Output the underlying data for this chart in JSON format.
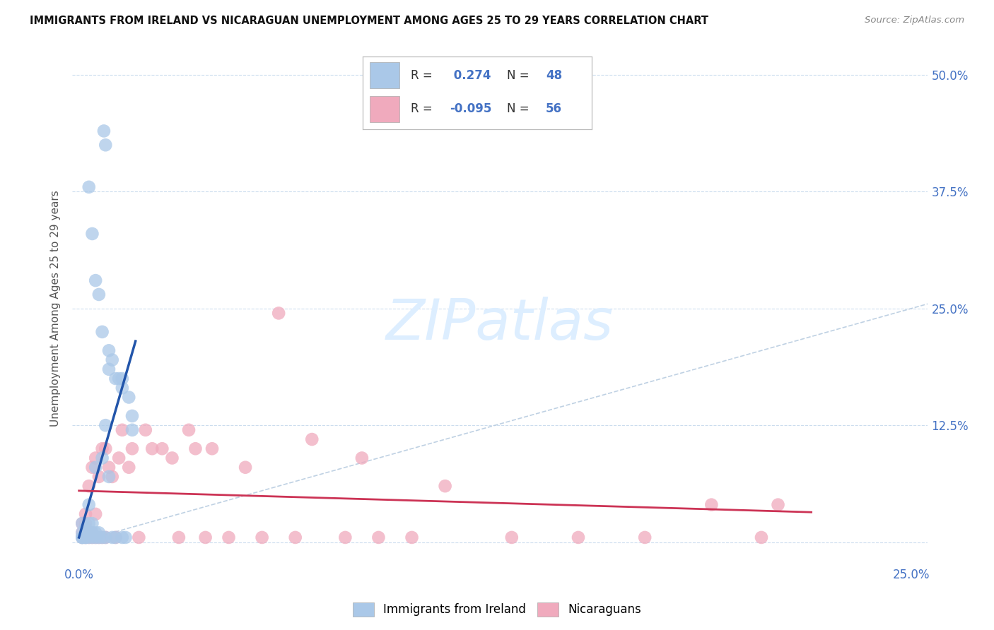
{
  "title": "IMMIGRANTS FROM IRELAND VS NICARAGUAN UNEMPLOYMENT AMONG AGES 25 TO 29 YEARS CORRELATION CHART",
  "source": "Source: ZipAtlas.com",
  "ylabel": "Unemployment Among Ages 25 to 29 years",
  "xlim": [
    -0.002,
    0.255
  ],
  "ylim": [
    -0.025,
    0.525
  ],
  "x_tick_pos": [
    0.0,
    0.05,
    0.1,
    0.15,
    0.2,
    0.25
  ],
  "x_tick_labels": [
    "0.0%",
    "",
    "",
    "",
    "",
    "25.0%"
  ],
  "y_tick_pos": [
    0.0,
    0.125,
    0.25,
    0.375,
    0.5
  ],
  "y_tick_labels_right": [
    "",
    "12.5%",
    "25.0%",
    "37.5%",
    "50.0%"
  ],
  "ireland_R": 0.274,
  "ireland_N": 48,
  "nicaragua_R": -0.095,
  "nicaragua_N": 56,
  "ireland_color": "#aac8e8",
  "ireland_line_color": "#2255aa",
  "nicaragua_color": "#f0aabd",
  "nicaragua_line_color": "#cc3355",
  "diagonal_color": "#b8cce0",
  "watermark_color": "#ddeeff",
  "grid_color": "#ccddee",
  "background_color": "#ffffff",
  "ireland_x": [
    0.001,
    0.001,
    0.001,
    0.001,
    0.001,
    0.002,
    0.002,
    0.002,
    0.002,
    0.002,
    0.003,
    0.003,
    0.003,
    0.003,
    0.004,
    0.004,
    0.004,
    0.005,
    0.005,
    0.005,
    0.006,
    0.006,
    0.007,
    0.007,
    0.008,
    0.008,
    0.009,
    0.01,
    0.011,
    0.013,
    0.014,
    0.016,
    0.003,
    0.004,
    0.005,
    0.006,
    0.007,
    0.008,
    0.009,
    0.01,
    0.011,
    0.012,
    0.013,
    0.015,
    0.016,
    0.0075,
    0.009,
    0.013
  ],
  "ireland_y": [
    0.005,
    0.005,
    0.005,
    0.01,
    0.02,
    0.005,
    0.005,
    0.01,
    0.01,
    0.015,
    0.005,
    0.01,
    0.02,
    0.04,
    0.005,
    0.01,
    0.02,
    0.005,
    0.01,
    0.08,
    0.005,
    0.01,
    0.005,
    0.09,
    0.005,
    0.125,
    0.07,
    0.005,
    0.005,
    0.005,
    0.005,
    0.12,
    0.38,
    0.33,
    0.28,
    0.265,
    0.225,
    0.425,
    0.205,
    0.195,
    0.175,
    0.175,
    0.175,
    0.155,
    0.135,
    0.44,
    0.185,
    0.165
  ],
  "nicaragua_x": [
    0.001,
    0.001,
    0.001,
    0.002,
    0.002,
    0.002,
    0.002,
    0.003,
    0.003,
    0.003,
    0.004,
    0.004,
    0.004,
    0.005,
    0.005,
    0.005,
    0.006,
    0.006,
    0.007,
    0.007,
    0.008,
    0.008,
    0.009,
    0.01,
    0.011,
    0.012,
    0.013,
    0.015,
    0.016,
    0.018,
    0.02,
    0.022,
    0.025,
    0.028,
    0.03,
    0.033,
    0.035,
    0.038,
    0.04,
    0.045,
    0.05,
    0.055,
    0.06,
    0.065,
    0.07,
    0.08,
    0.085,
    0.09,
    0.1,
    0.11,
    0.13,
    0.15,
    0.17,
    0.19,
    0.205,
    0.21
  ],
  "nicaragua_y": [
    0.005,
    0.01,
    0.02,
    0.005,
    0.01,
    0.02,
    0.03,
    0.005,
    0.01,
    0.06,
    0.005,
    0.01,
    0.08,
    0.005,
    0.03,
    0.09,
    0.005,
    0.07,
    0.005,
    0.1,
    0.005,
    0.1,
    0.08,
    0.07,
    0.005,
    0.09,
    0.12,
    0.08,
    0.1,
    0.005,
    0.12,
    0.1,
    0.1,
    0.09,
    0.005,
    0.12,
    0.1,
    0.005,
    0.1,
    0.005,
    0.08,
    0.005,
    0.245,
    0.005,
    0.11,
    0.005,
    0.09,
    0.005,
    0.005,
    0.06,
    0.005,
    0.005,
    0.005,
    0.04,
    0.005,
    0.04
  ],
  "ireland_line_x": [
    0.0,
    0.017
  ],
  "ireland_line_y": [
    0.005,
    0.215
  ],
  "nicaragua_line_x": [
    0.0,
    0.22
  ],
  "nicaragua_line_y": [
    0.055,
    0.032
  ]
}
